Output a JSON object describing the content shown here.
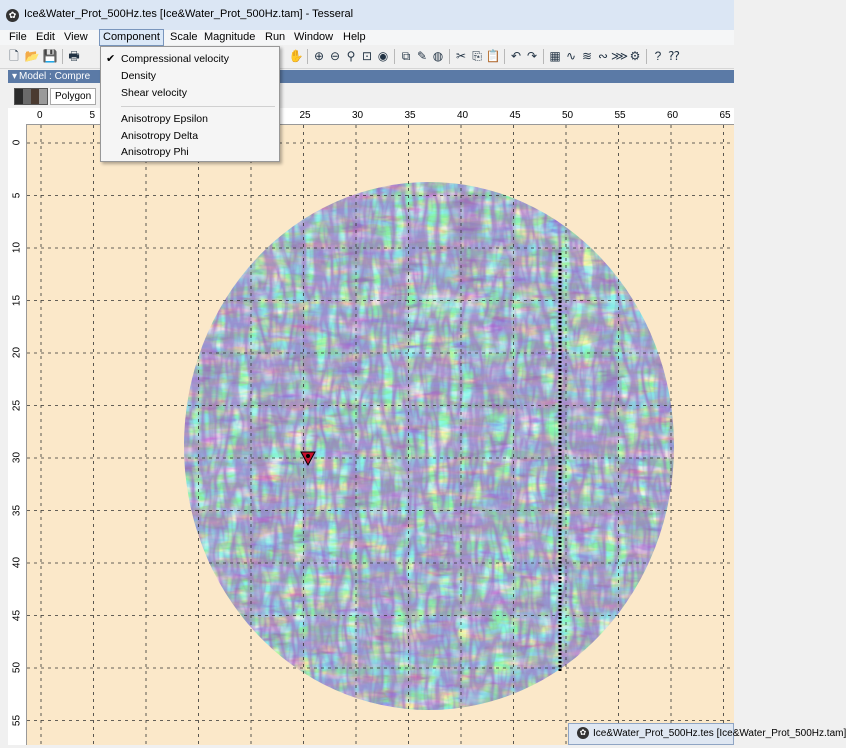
{
  "window": {
    "title": "Ice&Water_Prot_500Hz.tes [Ice&Water_Prot_500Hz.tam] - Tesseral"
  },
  "menu": {
    "items": [
      "File",
      "Edit",
      "View",
      "Component",
      "Scale",
      "Magnitude",
      "Run",
      "Window",
      "Help"
    ],
    "active": "Component"
  },
  "component_menu": {
    "items": [
      {
        "label": "Compressional velocity",
        "checked": true
      },
      {
        "label": "Density",
        "checked": false
      },
      {
        "label": "Shear velocity",
        "checked": false
      },
      {
        "label": "Anisotropy Epsilon",
        "checked": false
      },
      {
        "label": "Anisotropy Delta",
        "checked": false
      },
      {
        "label": "Anisotropy Phi",
        "checked": false
      }
    ]
  },
  "model_panel": {
    "header": "Model : Compre",
    "polygon_label": "Polygon"
  },
  "ruler": {
    "x_ticks": [
      "0",
      "5",
      "25",
      "30",
      "35",
      "40",
      "45",
      "50",
      "55",
      "60",
      "65"
    ],
    "y_ticks": [
      "0",
      "5",
      "10",
      "15",
      "20",
      "25",
      "30",
      "35",
      "40",
      "45",
      "50",
      "55"
    ]
  },
  "taskbar": {
    "label": "Ice&Water_Prot_500Hz.tes [Ice&Water_Prot_500Hz.tam]"
  },
  "colors": {
    "background": "#fbe8c9",
    "velocity_low": "#5a1f8c",
    "velocity_mid_low": "#3e5fd6",
    "velocity_mid": "#3fd0c9",
    "velocity_mid_high": "#7fe35a",
    "velocity_high": "#f7f27a",
    "marker": "#c8102e"
  },
  "icons": [
    "new-icon",
    "open-icon",
    "save-icon",
    "print-icon",
    "zoom-in-icon",
    "zoom-out-icon",
    "zoom-window-icon",
    "fit-icon",
    "cut-icon",
    "copy-icon",
    "paste-icon",
    "undo-icon",
    "redo-icon",
    "palette-icon",
    "help-icon"
  ]
}
